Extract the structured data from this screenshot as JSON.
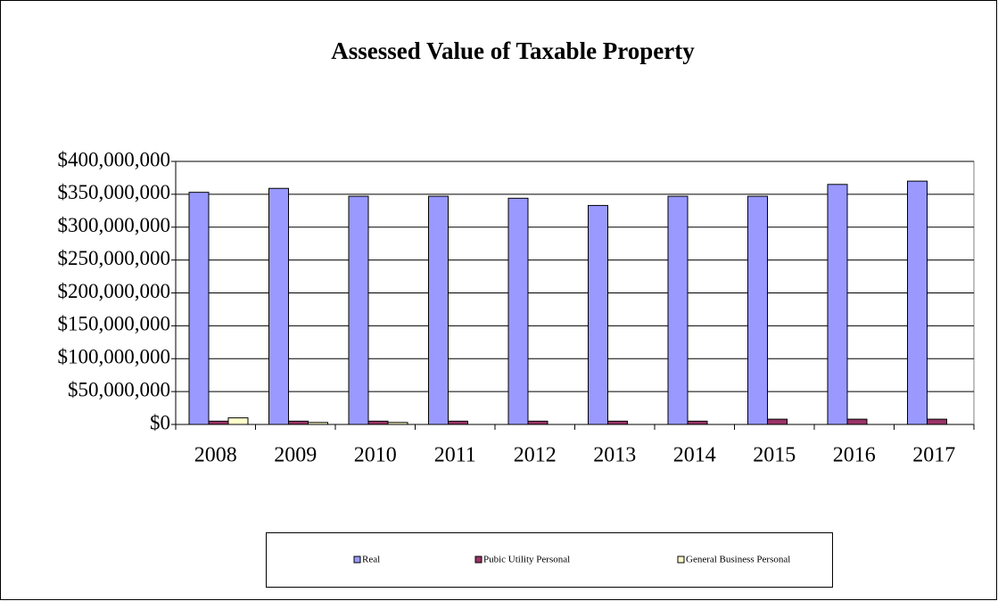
{
  "chart_data": {
    "type": "bar",
    "title": "Assessed Value of Taxable Property",
    "categories": [
      "2008",
      "2009",
      "2010",
      "2011",
      "2012",
      "2013",
      "2014",
      "2015",
      "2016",
      "2017"
    ],
    "series": [
      {
        "name": "Real",
        "color": "#9999ff",
        "values": [
          353000000,
          359000000,
          347000000,
          347000000,
          344000000,
          333000000,
          347000000,
          347000000,
          365000000,
          370000000
        ]
      },
      {
        "name": "Pubic Utility Personal",
        "color": "#993366",
        "values": [
          5000000,
          5000000,
          5000000,
          5000000,
          5000000,
          5000000,
          5000000,
          8000000,
          8000000,
          8000000
        ]
      },
      {
        "name": "General Business Personal",
        "color": "#ffffcc",
        "values": [
          10000000,
          3000000,
          3000000,
          0,
          0,
          0,
          0,
          0,
          0,
          0
        ]
      }
    ],
    "ylim": [
      0,
      400000000
    ],
    "yticks": [
      {
        "value": 0,
        "label": "$0"
      },
      {
        "value": 50000000,
        "label": "$50,000,000"
      },
      {
        "value": 100000000,
        "label": "$100,000,000"
      },
      {
        "value": 150000000,
        "label": "$150,000,000"
      },
      {
        "value": 200000000,
        "label": "$200,000,000"
      },
      {
        "value": 250000000,
        "label": "$250,000,000"
      },
      {
        "value": 300000000,
        "label": "$300,000,000"
      },
      {
        "value": 350000000,
        "label": "$350,000,000"
      },
      {
        "value": 400000000,
        "label": "$400,000,000"
      }
    ],
    "grid": true,
    "legend": "bottom"
  }
}
